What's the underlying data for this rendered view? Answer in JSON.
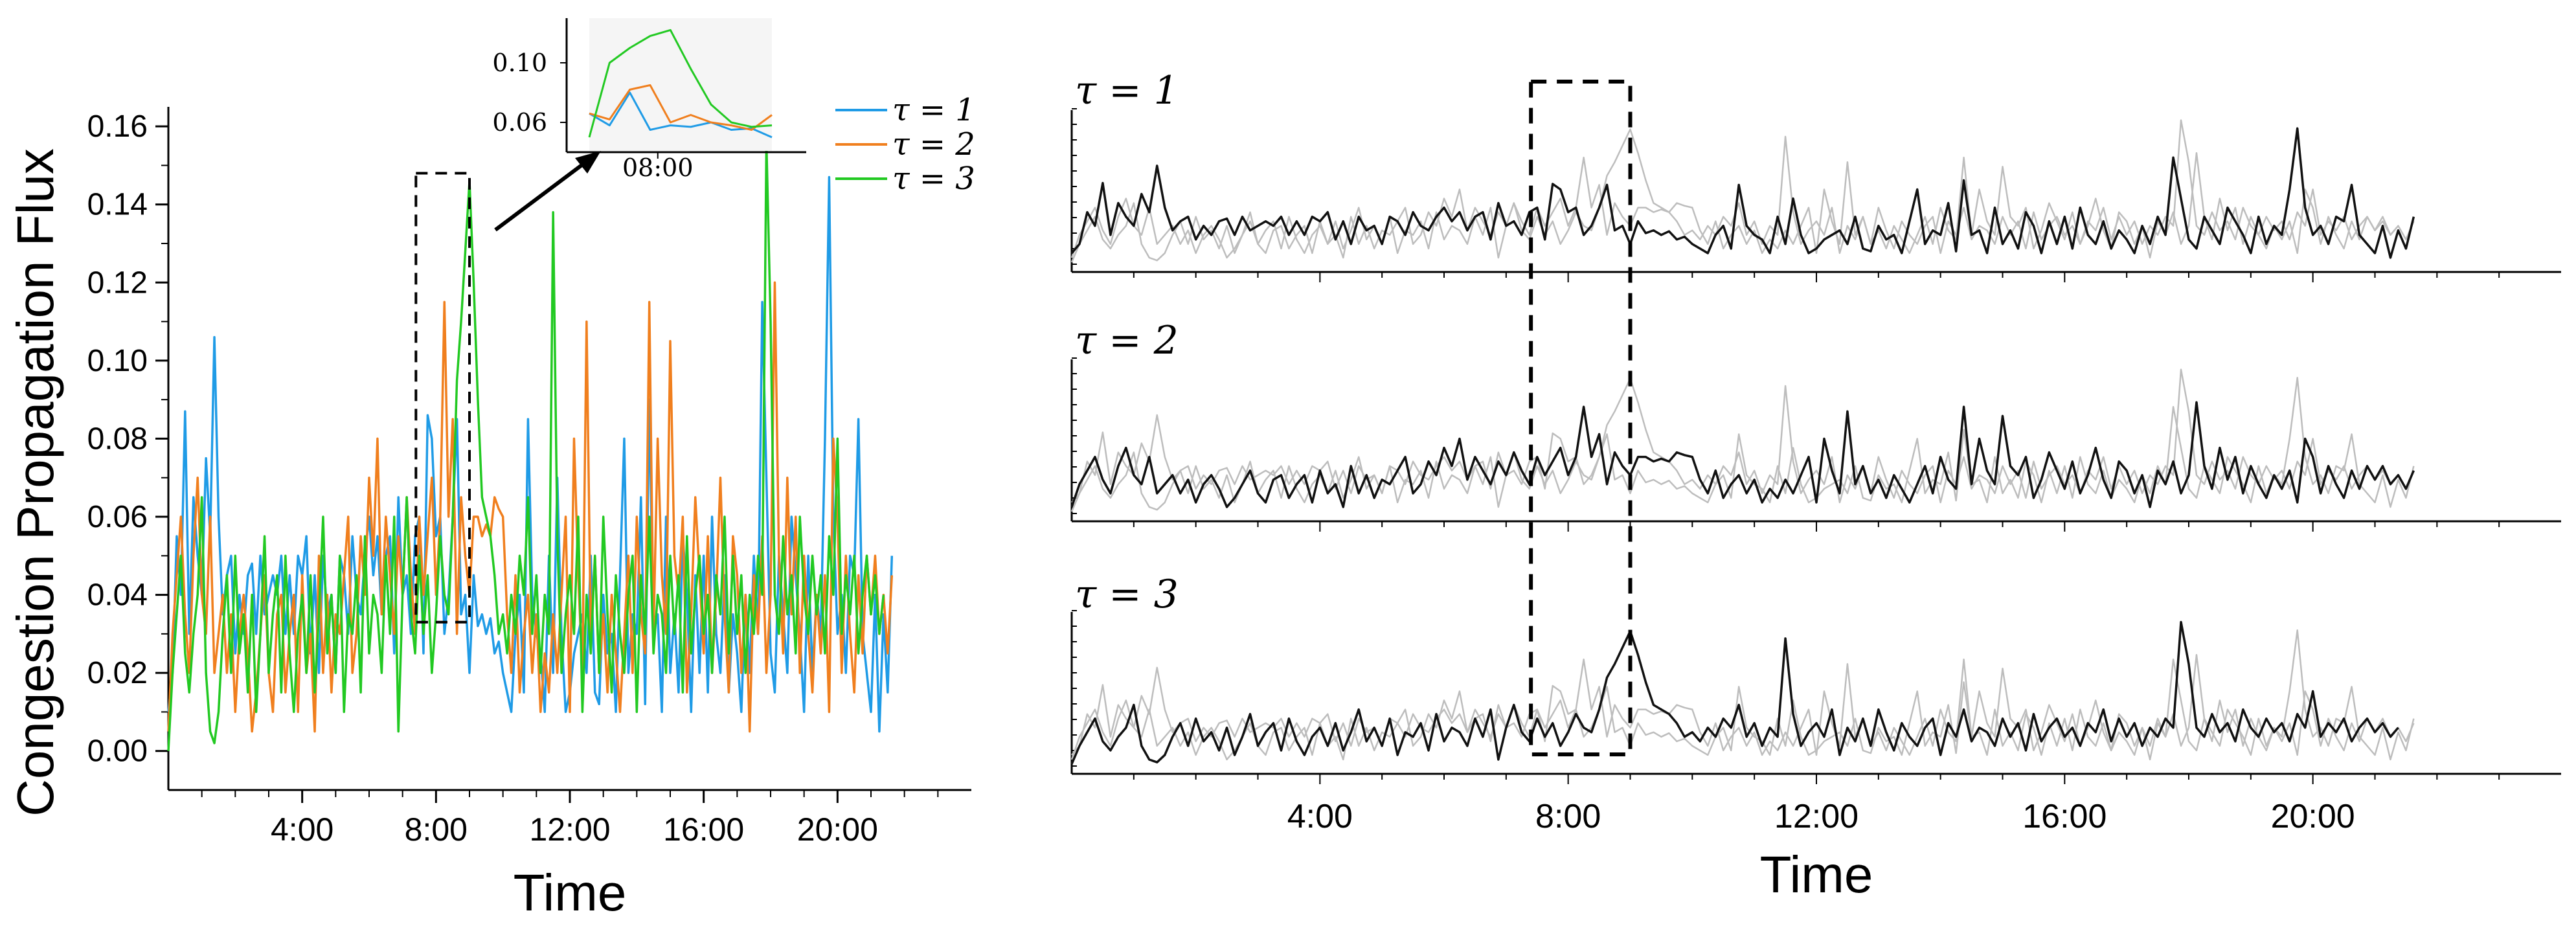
{
  "colors": {
    "tau1": "#1f9be6",
    "tau2": "#f07f1e",
    "tau3": "#22c922",
    "axis": "#000000",
    "context": "#bdbdbd",
    "active": "#111111",
    "inset_bg": "#f5f5f5"
  },
  "chart_data": [
    {
      "type": "line",
      "title": "",
      "xlabel": "Time",
      "ylabel": "Congestion Propagation Flux",
      "xlim": [
        0,
        24
      ],
      "ylim": [
        -0.01,
        0.165
      ],
      "x_tick_labels": [
        "4:00",
        "8:00",
        "12:00",
        "16:00",
        "20:00"
      ],
      "y_tick_labels": [
        "0.00",
        "0.02",
        "0.04",
        "0.06",
        "0.08",
        "0.10",
        "0.12",
        "0.14",
        "0.16"
      ],
      "legend": {
        "position": "top-right",
        "entries": [
          "τ = 1",
          "τ = 2",
          "τ = 3"
        ]
      },
      "highlight_box": {
        "x_range": [
          7.4,
          9.0
        ],
        "y_range": [
          0.033,
          0.148
        ]
      },
      "x_step": 0.125,
      "series": [
        {
          "name": "τ = 1",
          "values": [
            0.01,
            0.02,
            0.055,
            0.04,
            0.087,
            0.03,
            0.065,
            0.05,
            0.04,
            0.075,
            0.055,
            0.106,
            0.06,
            0.035,
            0.045,
            0.05,
            0.025,
            0.04,
            0.03,
            0.045,
            0.048,
            0.03,
            0.05,
            0.035,
            0.04,
            0.045,
            0.04,
            0.05,
            0.03,
            0.045,
            0.03,
            0.05,
            0.045,
            0.055,
            0.025,
            0.045,
            0.02,
            0.05,
            0.035,
            0.04,
            0.02,
            0.05,
            0.045,
            0.03,
            0.055,
            0.04,
            0.035,
            0.05,
            0.06,
            0.045,
            0.055,
            0.035,
            0.05,
            0.055,
            0.025,
            0.065,
            0.04,
            0.045,
            0.03,
            0.055,
            0.06,
            0.025,
            0.086,
            0.08,
            0.055,
            0.06,
            0.03,
            0.04,
            0.06,
            0.085,
            0.035,
            0.04,
            0.02,
            0.045,
            0.032,
            0.035,
            0.03,
            0.034,
            0.025,
            0.028,
            0.02,
            0.015,
            0.01,
            0.03,
            0.04,
            0.015,
            0.085,
            0.04,
            0.03,
            0.025,
            0.01,
            0.05,
            0.02,
            0.07,
            0.03,
            0.01,
            0.015,
            0.025,
            0.03,
            0.035,
            0.02,
            0.05,
            0.015,
            0.012,
            0.04,
            0.025,
            0.03,
            0.01,
            0.045,
            0.08,
            0.02,
            0.035,
            0.03,
            0.065,
            0.012,
            0.09,
            0.03,
            0.035,
            0.01,
            0.06,
            0.02,
            0.035,
            0.015,
            0.055,
            0.04,
            0.01,
            0.045,
            0.02,
            0.05,
            0.015,
            0.06,
            0.03,
            0.02,
            0.045,
            0.015,
            0.035,
            0.025,
            0.01,
            0.04,
            0.02,
            0.05,
            0.03,
            0.115,
            0.07,
            0.025,
            0.015,
            0.05,
            0.035,
            0.02,
            0.06,
            0.045,
            0.03,
            0.01,
            0.05,
            0.02,
            0.04,
            0.03,
            0.08,
            0.147,
            0.06,
            0.03,
            0.04,
            0.02,
            0.05,
            0.045,
            0.085,
            0.03,
            0.02,
            0.01,
            0.04,
            0.005,
            0.035,
            0.015,
            0.05
          ]
        },
        {
          "name": "τ = 2",
          "values": [
            0.005,
            0.03,
            0.045,
            0.06,
            0.035,
            0.02,
            0.05,
            0.07,
            0.04,
            0.03,
            0.06,
            0.02,
            0.03,
            0.04,
            0.02,
            0.035,
            0.01,
            0.03,
            0.04,
            0.025,
            0.005,
            0.015,
            0.03,
            0.045,
            0.02,
            0.01,
            0.035,
            0.04,
            0.015,
            0.03,
            0.04,
            0.01,
            0.045,
            0.02,
            0.03,
            0.005,
            0.05,
            0.02,
            0.04,
            0.015,
            0.035,
            0.03,
            0.045,
            0.06,
            0.02,
            0.03,
            0.055,
            0.04,
            0.07,
            0.05,
            0.08,
            0.035,
            0.06,
            0.045,
            0.03,
            0.055,
            0.04,
            0.065,
            0.045,
            0.03,
            0.06,
            0.04,
            0.055,
            0.07,
            0.04,
            0.06,
            0.115,
            0.06,
            0.085,
            0.03,
            0.065,
            0.05,
            0.04,
            0.06,
            0.06,
            0.055,
            0.058,
            0.055,
            0.065,
            0.062,
            0.06,
            0.035,
            0.02,
            0.045,
            0.015,
            0.03,
            0.04,
            0.02,
            0.035,
            0.01,
            0.025,
            0.015,
            0.035,
            0.02,
            0.04,
            0.06,
            0.01,
            0.08,
            0.045,
            0.02,
            0.11,
            0.03,
            0.05,
            0.02,
            0.035,
            0.015,
            0.04,
            0.025,
            0.01,
            0.03,
            0.05,
            0.02,
            0.06,
            0.035,
            0.025,
            0.115,
            0.03,
            0.08,
            0.045,
            0.03,
            0.105,
            0.05,
            0.04,
            0.06,
            0.015,
            0.035,
            0.065,
            0.045,
            0.025,
            0.055,
            0.02,
            0.04,
            0.07,
            0.035,
            0.015,
            0.055,
            0.045,
            0.02,
            0.04,
            0.005,
            0.045,
            0.03,
            0.055,
            0.02,
            0.04,
            0.12,
            0.05,
            0.025,
            0.07,
            0.035,
            0.06,
            0.02,
            0.05,
            0.03,
            0.015,
            0.04,
            0.025,
            0.045,
            0.01,
            0.08,
            0.06,
            0.02,
            0.05,
            0.03,
            0.015,
            0.045,
            0.025,
            0.05,
            0.035,
            0.05,
            0.03,
            0.04,
            0.025,
            0.045
          ]
        },
        {
          "name": "τ = 3",
          "values": [
            0.0,
            0.02,
            0.035,
            0.05,
            0.025,
            0.015,
            0.03,
            0.04,
            0.065,
            0.02,
            0.005,
            0.002,
            0.01,
            0.03,
            0.045,
            0.02,
            0.05,
            0.025,
            0.035,
            0.015,
            0.04,
            0.01,
            0.03,
            0.055,
            0.02,
            0.035,
            0.045,
            0.015,
            0.05,
            0.025,
            0.01,
            0.03,
            0.04,
            0.02,
            0.045,
            0.015,
            0.035,
            0.06,
            0.025,
            0.04,
            0.02,
            0.05,
            0.01,
            0.035,
            0.03,
            0.045,
            0.015,
            0.055,
            0.025,
            0.04,
            0.035,
            0.02,
            0.05,
            0.03,
            0.06,
            0.005,
            0.04,
            0.065,
            0.035,
            0.025,
            0.05,
            0.03,
            0.045,
            0.02,
            0.035,
            0.055,
            0.04,
            0.035,
            0.06,
            0.095,
            0.11,
            0.128,
            0.146,
            0.12,
            0.09,
            0.065,
            0.06,
            0.055,
            0.045,
            0.03,
            0.035,
            0.025,
            0.04,
            0.03,
            0.05,
            0.04,
            0.065,
            0.03,
            0.045,
            0.02,
            0.04,
            0.03,
            0.138,
            0.055,
            0.02,
            0.035,
            0.045,
            0.03,
            0.06,
            0.01,
            0.04,
            0.025,
            0.05,
            0.02,
            0.06,
            0.035,
            0.015,
            0.045,
            0.03,
            0.02,
            0.04,
            0.05,
            0.01,
            0.045,
            0.03,
            0.06,
            0.025,
            0.04,
            0.035,
            0.02,
            0.05,
            0.03,
            0.045,
            0.015,
            0.055,
            0.025,
            0.04,
            0.05,
            0.03,
            0.04,
            0.02,
            0.045,
            0.035,
            0.06,
            0.025,
            0.05,
            0.03,
            0.045,
            0.02,
            0.04,
            0.03,
            0.05,
            0.04,
            0.156,
            0.11,
            0.04,
            0.03,
            0.055,
            0.035,
            0.045,
            0.025,
            0.06,
            0.04,
            0.03,
            0.05,
            0.035,
            0.045,
            0.025,
            0.055,
            0.04,
            0.08,
            0.03,
            0.045,
            0.035,
            0.05,
            0.025,
            0.04,
            0.05,
            0.035,
            0.045,
            0.03,
            0.04
          ]
        }
      ]
    },
    {
      "type": "line",
      "title": "",
      "xlabel": "",
      "ylabel": "",
      "xlim": [
        7.4,
        9.0
      ],
      "ylim": [
        0.04,
        0.13
      ],
      "x_tick_labels": [
        "08:00"
      ],
      "y_tick_labels": [
        "0.06",
        "0.10"
      ],
      "background": "light-gray",
      "series": [
        {
          "name": "τ = 1",
          "values": [
            0.066,
            0.058,
            0.08,
            0.055,
            0.058,
            0.057,
            0.06,
            0.055,
            0.056,
            0.05
          ]
        },
        {
          "name": "τ = 2",
          "values": [
            0.066,
            0.062,
            0.082,
            0.085,
            0.06,
            0.065,
            0.06,
            0.058,
            0.055,
            0.065
          ]
        },
        {
          "name": "τ = 3",
          "values": [
            0.05,
            0.1,
            0.11,
            0.118,
            0.122,
            0.096,
            0.072,
            0.06,
            0.057,
            0.058
          ]
        }
      ]
    },
    {
      "type": "line",
      "title": "",
      "xlabel": "Time",
      "ylabel": "",
      "xlim": [
        0,
        24
      ],
      "x_tick_labels": [
        "4:00",
        "8:00",
        "12:00",
        "16:00",
        "20:00"
      ],
      "highlight_box": {
        "x_range": [
          7.4,
          9.0
        ]
      },
      "panels": [
        {
          "label": "τ = 1",
          "active_series": "τ = 1"
        },
        {
          "label": "τ = 2",
          "active_series": "τ = 2"
        },
        {
          "label": "τ = 3",
          "active_series": "τ = 3"
        }
      ]
    }
  ]
}
